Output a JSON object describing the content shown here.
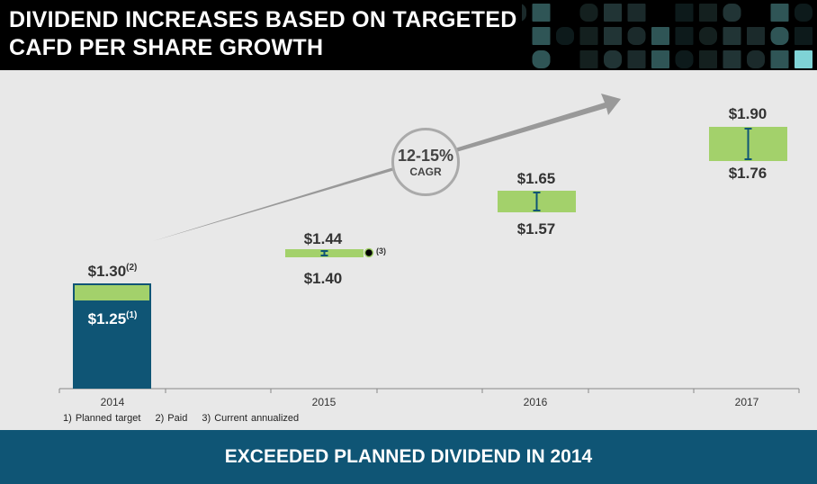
{
  "title_lines": [
    "DIVIDEND INCREASES BASED ON TARGETED",
    "CAFD PER SHARE GROWTH"
  ],
  "footer": "EXCEEDED PLANNED DIVIDEND IN 2014",
  "colors": {
    "navy": "#0f5575",
    "green": "#a3d16b",
    "arrow": "#999999",
    "header": "#000000",
    "accent_teal": "#7fd3d6"
  },
  "cagr": {
    "value": "12-15%",
    "label": "CAGR"
  },
  "notes": [
    "1)  Planned target",
    "2) Paid",
    "3) Current annualized"
  ],
  "chart_data": {
    "type": "bar",
    "categories": [
      "2014",
      "2015",
      "2016",
      "2017"
    ],
    "series": [
      {
        "name": "Planned target",
        "values": [
          1.25,
          null,
          null,
          null
        ]
      },
      {
        "name": "Paid",
        "values": [
          1.3,
          null,
          null,
          null
        ]
      },
      {
        "name": "Range low",
        "values": [
          null,
          1.4,
          1.57,
          1.76
        ]
      },
      {
        "name": "Range high",
        "values": [
          null,
          1.44,
          1.65,
          1.9
        ]
      }
    ],
    "labels": {
      "2014": {
        "top": "$1.30",
        "top_note": "(2)",
        "inner": "$1.25",
        "inner_note": "(1)"
      },
      "2015": {
        "top": "$1.44",
        "bottom": "$1.40",
        "marker_note": "(3)"
      },
      "2016": {
        "top": "$1.65",
        "bottom": "$1.57"
      },
      "2017": {
        "top": "$1.90",
        "bottom": "$1.76"
      }
    },
    "current_annualized_marker": "2015",
    "grid": false,
    "legend": "none"
  }
}
